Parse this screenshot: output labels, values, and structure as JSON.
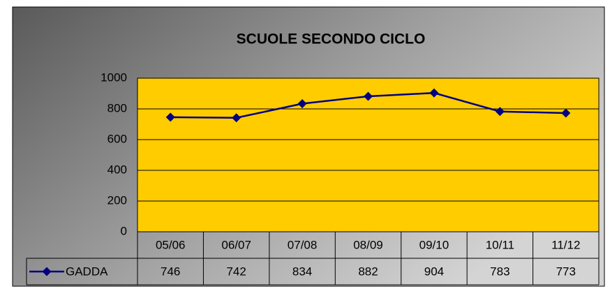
{
  "chart_data": {
    "type": "line",
    "title": "SCUOLE SECONDO CICLO",
    "categories": [
      "05/06",
      "06/07",
      "07/08",
      "08/09",
      "09/10",
      "10/11",
      "11/12"
    ],
    "series": [
      {
        "name": "GADDA",
        "color": "#000080",
        "values": [
          746,
          742,
          834,
          882,
          904,
          783,
          773
        ]
      }
    ],
    "ylim": [
      0,
      1000
    ],
    "yticks": [
      0,
      200,
      400,
      600,
      800,
      1000
    ],
    "grid": true,
    "plot_color": "#ffcc00"
  }
}
